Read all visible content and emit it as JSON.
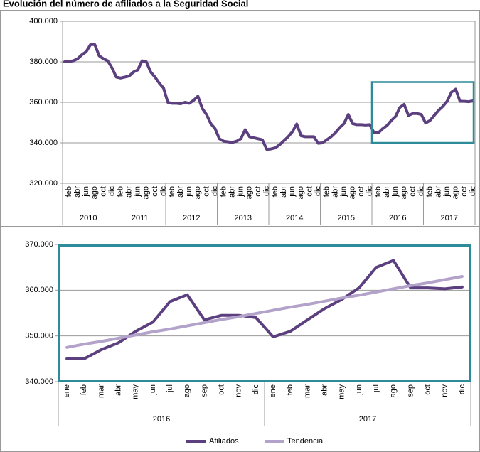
{
  "chart_data": [
    {
      "type": "line",
      "title": "Evolución del número de afiliados a la Seguridad Social",
      "categories": [
        null,
        "feb",
        null,
        "abr",
        null,
        "jun",
        null,
        "ago",
        null,
        "oct",
        null,
        "dic",
        null,
        "feb",
        null,
        "abr",
        null,
        "jun",
        null,
        "ago",
        null,
        "oct",
        null,
        "dic",
        null,
        "feb",
        null,
        "abr",
        null,
        "jun",
        null,
        "ago",
        null,
        "oct",
        null,
        "dic",
        null,
        "feb",
        null,
        "abr",
        null,
        "jun",
        null,
        "ago",
        null,
        "oct",
        null,
        "dic",
        null,
        "feb",
        null,
        "abr",
        null,
        "jun",
        null,
        "ago",
        null,
        "oct",
        null,
        "dic",
        null,
        "feb",
        null,
        "abr",
        null,
        "jun",
        null,
        "ago",
        null,
        "oct",
        null,
        "dic",
        null,
        "feb",
        null,
        "abr",
        null,
        "jun",
        null,
        "ago",
        null,
        "oct",
        null,
        "dic",
        null,
        "feb",
        null,
        "abr",
        null,
        "jun",
        null,
        "ago",
        null,
        "oct",
        null,
        "dic"
      ],
      "year_labels": [
        "2010",
        "2011",
        "2012",
        "2013",
        "2014",
        "2015",
        "2016",
        "2017"
      ],
      "series": [
        {
          "name": "Afiliados",
          "color": "#5b3f7e",
          "values": [
            380000,
            380200,
            380500,
            381500,
            383500,
            385000,
            388500,
            388500,
            383000,
            381500,
            380500,
            377000,
            372500,
            372000,
            372500,
            373000,
            375000,
            376000,
            380500,
            380000,
            375000,
            372500,
            369500,
            367000,
            360000,
            359500,
            359500,
            359300,
            360000,
            359500,
            361000,
            363000,
            357000,
            354000,
            349500,
            347000,
            342000,
            340800,
            340500,
            340200,
            340800,
            342000,
            346500,
            343000,
            342500,
            342000,
            341500,
            336800,
            337000,
            337500,
            339000,
            341000,
            343000,
            345500,
            349300,
            343500,
            343000,
            343000,
            343000,
            339800,
            340000,
            341500,
            343000,
            345000,
            347500,
            349500,
            354000,
            349500,
            349000,
            349000,
            348800,
            349000,
            345000,
            345000,
            347000,
            348500,
            351000,
            353000,
            357500,
            359000,
            353500,
            354500,
            354500,
            354000,
            349800,
            351000,
            353500,
            356000,
            358000,
            360500,
            365000,
            366500,
            360500,
            360500,
            360300,
            360700
          ]
        }
      ],
      "ylim": [
        320000,
        400000
      ],
      "yticks": [
        {
          "value": 320000,
          "label": "320.000"
        },
        {
          "value": 340000,
          "label": "340.000"
        },
        {
          "value": 360000,
          "label": "360.000"
        },
        {
          "value": 380000,
          "label": "380.000"
        },
        {
          "value": 400000,
          "label": "400.000"
        }
      ],
      "grid": true,
      "highlight_color": "#2e8b9a"
    },
    {
      "type": "line",
      "categories": [
        "ene",
        "feb",
        "mar",
        "abr",
        "may",
        "jun",
        "jul",
        "ago",
        "sep",
        "oct",
        "nov",
        "dic",
        "ene",
        "feb",
        "mar",
        "abr",
        "may",
        "jun",
        "jul",
        "ago",
        "sep",
        "oct",
        "nov",
        "dic"
      ],
      "year_labels": [
        "2016",
        "2017"
      ],
      "series": [
        {
          "name": "Afiliados",
          "color": "#5b3f7e",
          "values": [
            345000,
            345000,
            347000,
            348500,
            351000,
            353000,
            357500,
            359000,
            353500,
            354500,
            354500,
            354000,
            349800,
            351000,
            353500,
            356000,
            358000,
            360500,
            365000,
            366500,
            360500,
            360500,
            360300,
            360700
          ]
        },
        {
          "name": "Tendencia",
          "color": "#b3a2c9",
          "values": [
            347500,
            348200,
            348800,
            349500,
            350200,
            350900,
            351500,
            352200,
            352900,
            353600,
            354200,
            354900,
            355600,
            356300,
            356900,
            357600,
            358300,
            358900,
            359600,
            360300,
            361000,
            361600,
            362300,
            363000
          ]
        }
      ],
      "ylim": [
        340000,
        370000
      ],
      "yticks": [
        {
          "value": 340000,
          "label": "340.000"
        },
        {
          "value": 350000,
          "label": "350.000"
        },
        {
          "value": 360000,
          "label": "360.000"
        },
        {
          "value": 370000,
          "label": "370.000"
        }
      ],
      "grid": true,
      "legend": "bottom",
      "frame_color": "#2e8b9a"
    }
  ]
}
